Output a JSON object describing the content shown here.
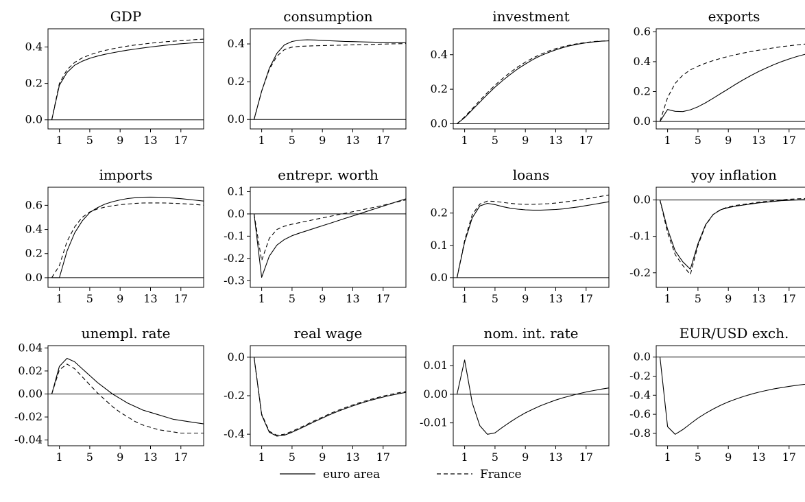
{
  "chart_data": [
    {
      "type": "line",
      "title": "GDP",
      "x": [
        0,
        1,
        2,
        3,
        4,
        5,
        6,
        7,
        8,
        9,
        10,
        11,
        12,
        13,
        14,
        15,
        16,
        17,
        18,
        19,
        20
      ],
      "xticks": [
        1,
        5,
        9,
        13,
        17
      ],
      "xlim": [
        -0.5,
        20
      ],
      "ylim": [
        -0.05,
        0.5
      ],
      "yticks": [
        "0.0",
        "0.2",
        "0.4"
      ],
      "zero_line": true,
      "series": [
        {
          "name": "euro area",
          "style": "solid",
          "values": [
            0,
            0.19,
            0.26,
            0.3,
            0.322,
            0.338,
            0.35,
            0.36,
            0.368,
            0.376,
            0.383,
            0.389,
            0.395,
            0.4,
            0.405,
            0.41,
            0.414,
            0.418,
            0.421,
            0.424,
            0.426
          ]
        },
        {
          "name": "France",
          "style": "dashed",
          "values": [
            0,
            0.2,
            0.275,
            0.315,
            0.34,
            0.357,
            0.37,
            0.381,
            0.39,
            0.398,
            0.405,
            0.411,
            0.416,
            0.421,
            0.425,
            0.429,
            0.432,
            0.435,
            0.438,
            0.441,
            0.443
          ]
        }
      ]
    },
    {
      "type": "line",
      "title": "consumption",
      "x": [
        0,
        1,
        2,
        3,
        4,
        5,
        6,
        7,
        8,
        9,
        10,
        11,
        12,
        13,
        14,
        15,
        16,
        17,
        18,
        19,
        20
      ],
      "xticks": [
        1,
        5,
        9,
        13,
        17
      ],
      "xlim": [
        -0.5,
        20
      ],
      "ylim": [
        -0.05,
        0.48
      ],
      "yticks": [
        "0.0",
        "0.2",
        "0.4"
      ],
      "zero_line": true,
      "series": [
        {
          "name": "euro area",
          "style": "solid",
          "values": [
            0,
            0.15,
            0.27,
            0.35,
            0.395,
            0.413,
            0.42,
            0.422,
            0.421,
            0.419,
            0.417,
            0.415,
            0.413,
            0.412,
            0.411,
            0.41,
            0.409,
            0.409,
            0.408,
            0.408,
            0.408
          ]
        },
        {
          "name": "France",
          "style": "dashed",
          "values": [
            0,
            0.15,
            0.265,
            0.335,
            0.37,
            0.383,
            0.387,
            0.389,
            0.39,
            0.391,
            0.392,
            0.393,
            0.394,
            0.395,
            0.396,
            0.397,
            0.398,
            0.399,
            0.4,
            0.401,
            0.402
          ]
        }
      ]
    },
    {
      "type": "line",
      "title": "investment",
      "x": [
        0,
        1,
        2,
        3,
        4,
        5,
        6,
        7,
        8,
        9,
        10,
        11,
        12,
        13,
        14,
        15,
        16,
        17,
        18,
        19,
        20
      ],
      "xticks": [
        1,
        5,
        9,
        13,
        17
      ],
      "xlim": [
        -0.5,
        20
      ],
      "ylim": [
        -0.03,
        0.55
      ],
      "yticks": [
        "0.0",
        "0.2",
        "0.4"
      ],
      "zero_line": true,
      "series": [
        {
          "name": "euro area",
          "style": "solid",
          "values": [
            0,
            0.035,
            0.08,
            0.125,
            0.17,
            0.212,
            0.25,
            0.285,
            0.318,
            0.346,
            0.372,
            0.394,
            0.412,
            0.428,
            0.442,
            0.453,
            0.462,
            0.469,
            0.474,
            0.478,
            0.48
          ]
        },
        {
          "name": "France",
          "style": "dashed",
          "values": [
            0,
            0.04,
            0.087,
            0.135,
            0.18,
            0.223,
            0.262,
            0.297,
            0.329,
            0.357,
            0.381,
            0.402,
            0.42,
            0.435,
            0.447,
            0.457,
            0.465,
            0.471,
            0.476,
            0.479,
            0.481
          ]
        }
      ]
    },
    {
      "type": "line",
      "title": "exports",
      "x": [
        0,
        1,
        2,
        3,
        4,
        5,
        6,
        7,
        8,
        9,
        10,
        11,
        12,
        13,
        14,
        15,
        16,
        17,
        18,
        19,
        20
      ],
      "xticks": [
        1,
        5,
        9,
        13,
        17
      ],
      "xlim": [
        -0.5,
        20
      ],
      "ylim": [
        -0.05,
        0.62
      ],
      "yticks": [
        "0.0",
        "0.2",
        "0.4",
        "0.6"
      ],
      "zero_line": true,
      "series": [
        {
          "name": "euro area",
          "style": "solid",
          "values": [
            0,
            0.08,
            0.068,
            0.066,
            0.078,
            0.098,
            0.125,
            0.155,
            0.187,
            0.218,
            0.25,
            0.28,
            0.308,
            0.334,
            0.358,
            0.38,
            0.4,
            0.418,
            0.434,
            0.448,
            0.46
          ]
        },
        {
          "name": "France",
          "style": "dashed",
          "values": [
            0,
            0.16,
            0.255,
            0.31,
            0.345,
            0.37,
            0.39,
            0.407,
            0.422,
            0.435,
            0.447,
            0.458,
            0.468,
            0.477,
            0.485,
            0.493,
            0.5,
            0.506,
            0.512,
            0.517,
            0.521
          ]
        }
      ]
    },
    {
      "type": "line",
      "title": "imports",
      "x": [
        0,
        1,
        2,
        3,
        4,
        5,
        6,
        7,
        8,
        9,
        10,
        11,
        12,
        13,
        14,
        15,
        16,
        17,
        18,
        19,
        20
      ],
      "xticks": [
        1,
        5,
        9,
        13,
        17
      ],
      "xlim": [
        -0.5,
        20
      ],
      "ylim": [
        -0.08,
        0.75
      ],
      "yticks": [
        "0.0",
        "0.2",
        "0.4",
        "0.6"
      ],
      "zero_line": true,
      "series": [
        {
          "name": "euro area",
          "style": "solid",
          "values": [
            0,
            0,
            0.22,
            0.37,
            0.47,
            0.54,
            0.58,
            0.61,
            0.63,
            0.645,
            0.656,
            0.663,
            0.667,
            0.668,
            0.667,
            0.664,
            0.66,
            0.655,
            0.649,
            0.642,
            0.635
          ]
        },
        {
          "name": "France",
          "style": "dashed",
          "values": [
            0,
            0.1,
            0.3,
            0.42,
            0.5,
            0.545,
            0.57,
            0.585,
            0.596,
            0.605,
            0.611,
            0.616,
            0.619,
            0.62,
            0.62,
            0.619,
            0.617,
            0.614,
            0.61,
            0.606,
            0.601
          ]
        }
      ]
    },
    {
      "type": "line",
      "title": "entrepr. worth",
      "x": [
        0,
        1,
        2,
        3,
        4,
        5,
        6,
        7,
        8,
        9,
        10,
        11,
        12,
        13,
        14,
        15,
        16,
        17,
        18,
        19,
        20
      ],
      "xticks": [
        1,
        5,
        9,
        13,
        17
      ],
      "xlim": [
        -0.5,
        20
      ],
      "ylim": [
        -0.33,
        0.12
      ],
      "yticks": [
        "0.1",
        "0.0",
        "-0.1",
        "-0.2",
        "-0.3"
      ],
      "zero_line": true,
      "series": [
        {
          "name": "euro area",
          "style": "solid",
          "values": [
            0,
            -0.285,
            -0.19,
            -0.14,
            -0.115,
            -0.098,
            -0.086,
            -0.075,
            -0.064,
            -0.053,
            -0.042,
            -0.031,
            -0.02,
            -0.009,
            0.002,
            0.013,
            0.024,
            0.035,
            0.046,
            0.057,
            0.068
          ]
        },
        {
          "name": "France",
          "style": "dashed",
          "values": [
            0,
            -0.21,
            -0.11,
            -0.07,
            -0.055,
            -0.046,
            -0.039,
            -0.032,
            -0.025,
            -0.018,
            -0.011,
            -0.004,
            0.003,
            0.01,
            0.017,
            0.024,
            0.031,
            0.039,
            0.047,
            0.055,
            0.063
          ]
        }
      ]
    },
    {
      "type": "line",
      "title": "loans",
      "x": [
        0,
        1,
        2,
        3,
        4,
        5,
        6,
        7,
        8,
        9,
        10,
        11,
        12,
        13,
        14,
        15,
        16,
        17,
        18,
        19,
        20
      ],
      "xticks": [
        1,
        5,
        9,
        13,
        17
      ],
      "xlim": [
        -0.5,
        20
      ],
      "ylim": [
        -0.03,
        0.28
      ],
      "yticks": [
        "0.0",
        "0.1",
        "0.2"
      ],
      "zero_line": true,
      "series": [
        {
          "name": "euro area",
          "style": "solid",
          "values": [
            0,
            0.11,
            0.185,
            0.222,
            0.23,
            0.226,
            0.22,
            0.215,
            0.212,
            0.21,
            0.209,
            0.209,
            0.21,
            0.211,
            0.213,
            0.216,
            0.219,
            0.223,
            0.227,
            0.231,
            0.235
          ]
        },
        {
          "name": "France",
          "style": "dashed",
          "values": [
            0,
            0.115,
            0.195,
            0.228,
            0.237,
            0.236,
            0.233,
            0.23,
            0.228,
            0.227,
            0.227,
            0.228,
            0.229,
            0.231,
            0.234,
            0.237,
            0.24,
            0.244,
            0.248,
            0.252,
            0.256
          ]
        }
      ]
    },
    {
      "type": "line",
      "title": "yoy inflation",
      "x": [
        0,
        1,
        2,
        3,
        4,
        5,
        6,
        7,
        8,
        9,
        10,
        11,
        12,
        13,
        14,
        15,
        16,
        17,
        18,
        19,
        20
      ],
      "xticks": [
        1,
        5,
        9,
        13,
        17
      ],
      "xlim": [
        -0.5,
        20
      ],
      "ylim": [
        -0.24,
        0.035
      ],
      "yticks": [
        "0.0",
        "-0.1",
        "-0.2"
      ],
      "zero_line": true,
      "series": [
        {
          "name": "euro area",
          "style": "solid",
          "values": [
            0,
            -0.08,
            -0.14,
            -0.17,
            -0.19,
            -0.12,
            -0.068,
            -0.04,
            -0.027,
            -0.021,
            -0.017,
            -0.014,
            -0.011,
            -0.008,
            -0.006,
            -0.004,
            -0.002,
            -0.001,
            0,
            0.001,
            0.002
          ]
        },
        {
          "name": "France",
          "style": "dashed",
          "values": [
            0,
            -0.09,
            -0.15,
            -0.18,
            -0.205,
            -0.125,
            -0.07,
            -0.04,
            -0.026,
            -0.019,
            -0.015,
            -0.012,
            -0.009,
            -0.006,
            -0.004,
            -0.002,
            0,
            0.002,
            0.003,
            0.004,
            0.005
          ]
        }
      ]
    },
    {
      "type": "line",
      "title": "unempl. rate",
      "x": [
        0,
        1,
        2,
        3,
        4,
        5,
        6,
        7,
        8,
        9,
        10,
        11,
        12,
        13,
        14,
        15,
        16,
        17,
        18,
        19,
        20
      ],
      "xticks": [
        1,
        5,
        9,
        13,
        17
      ],
      "xlim": [
        -0.5,
        20
      ],
      "ylim": [
        -0.045,
        0.042
      ],
      "yticks": [
        "0.04",
        "0.02",
        "0.00",
        "-0.02",
        "-0.04"
      ],
      "zero_line": true,
      "series": [
        {
          "name": "euro area",
          "style": "solid",
          "values": [
            0,
            0.024,
            0.031,
            0.028,
            0.022,
            0.016,
            0.01,
            0.005,
            0,
            -0.004,
            -0.008,
            -0.011,
            -0.014,
            -0.016,
            -0.018,
            -0.02,
            -0.022,
            -0.023,
            -0.024,
            -0.025,
            -0.026
          ]
        },
        {
          "name": "France",
          "style": "dashed",
          "values": [
            0,
            0.021,
            0.026,
            0.022,
            0.015,
            0.008,
            0.001,
            -0.005,
            -0.011,
            -0.016,
            -0.02,
            -0.024,
            -0.027,
            -0.029,
            -0.031,
            -0.032,
            -0.033,
            -0.034,
            -0.034,
            -0.034,
            -0.034
          ]
        }
      ]
    },
    {
      "type": "line",
      "title": "real wage",
      "x": [
        0,
        1,
        2,
        3,
        4,
        5,
        6,
        7,
        8,
        9,
        10,
        11,
        12,
        13,
        14,
        15,
        16,
        17,
        18,
        19,
        20
      ],
      "xticks": [
        1,
        5,
        9,
        13,
        17
      ],
      "xlim": [
        -0.5,
        20
      ],
      "ylim": [
        -0.46,
        0.06
      ],
      "yticks": [
        "0.0",
        "-0.2",
        "-0.4"
      ],
      "zero_line": true,
      "series": [
        {
          "name": "euro area",
          "style": "solid",
          "values": [
            0,
            -0.3,
            -0.39,
            -0.41,
            -0.405,
            -0.39,
            -0.372,
            -0.353,
            -0.334,
            -0.316,
            -0.298,
            -0.282,
            -0.267,
            -0.253,
            -0.24,
            -0.228,
            -0.217,
            -0.207,
            -0.198,
            -0.19,
            -0.183
          ]
        },
        {
          "name": "France",
          "style": "dashed",
          "values": [
            0,
            -0.295,
            -0.385,
            -0.405,
            -0.4,
            -0.385,
            -0.367,
            -0.348,
            -0.329,
            -0.311,
            -0.293,
            -0.277,
            -0.262,
            -0.248,
            -0.235,
            -0.223,
            -0.212,
            -0.202,
            -0.193,
            -0.185,
            -0.178
          ]
        }
      ]
    },
    {
      "type": "line",
      "title": "nom. int. rate",
      "x": [
        0,
        1,
        2,
        3,
        4,
        5,
        6,
        7,
        8,
        9,
        10,
        11,
        12,
        13,
        14,
        15,
        16,
        17,
        18,
        19,
        20
      ],
      "xticks": [
        1,
        5,
        9,
        13,
        17
      ],
      "xlim": [
        -0.5,
        20
      ],
      "ylim": [
        -0.018,
        0.017
      ],
      "yticks": [
        "0.01",
        "0.00",
        "-0.01"
      ],
      "zero_line": true,
      "series": [
        {
          "name": "euro area",
          "style": "solid",
          "values": [
            0,
            0.012,
            -0.003,
            -0.011,
            -0.014,
            -0.0135,
            -0.0115,
            -0.0097,
            -0.008,
            -0.0065,
            -0.0052,
            -0.004,
            -0.003,
            -0.002,
            -0.0012,
            -0.0005,
            0.0002,
            0.0008,
            0.0013,
            0.0018,
            0.0022
          ]
        }
      ]
    },
    {
      "type": "line",
      "title": "EUR/USD exch.",
      "x": [
        0,
        1,
        2,
        3,
        4,
        5,
        6,
        7,
        8,
        9,
        10,
        11,
        12,
        13,
        14,
        15,
        16,
        17,
        18,
        19,
        20
      ],
      "xticks": [
        1,
        5,
        9,
        13,
        17
      ],
      "xlim": [
        -0.5,
        20
      ],
      "ylim": [
        -0.93,
        0.12
      ],
      "yticks": [
        "0.0",
        "-0.2",
        "-0.4",
        "-0.6",
        "-0.8"
      ],
      "zero_line": true,
      "series": [
        {
          "name": "euro area",
          "style": "solid",
          "values": [
            0,
            -0.73,
            -0.81,
            -0.76,
            -0.7,
            -0.64,
            -0.59,
            -0.545,
            -0.505,
            -0.47,
            -0.44,
            -0.413,
            -0.389,
            -0.368,
            -0.35,
            -0.334,
            -0.32,
            -0.307,
            -0.296,
            -0.286,
            -0.277
          ]
        }
      ]
    }
  ],
  "legend": {
    "placement": "bottom-center",
    "items": [
      {
        "label": "euro area",
        "style": "solid"
      },
      {
        "label": "France",
        "style": "dashed"
      }
    ]
  }
}
